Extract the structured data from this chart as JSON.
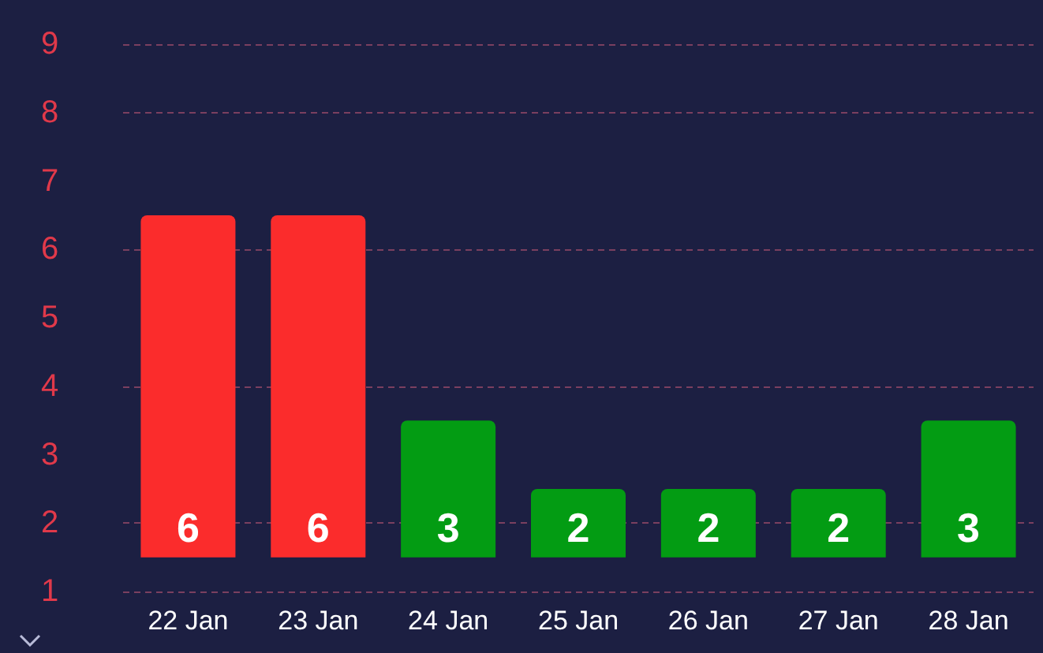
{
  "chart_data": {
    "type": "bar",
    "categories": [
      "22 Jan",
      "23 Jan",
      "24 Jan",
      "25 Jan",
      "26 Jan",
      "27 Jan",
      "28 Jan"
    ],
    "base": [
      1.5,
      1.5,
      1.5,
      1.5,
      1.5,
      1.5,
      1.5
    ],
    "values": [
      5,
      5,
      2,
      1,
      1,
      1,
      2
    ],
    "value_labels": [
      "6",
      "6",
      "3",
      "2",
      "2",
      "2",
      "3"
    ],
    "colors": [
      "#fb2c2c",
      "#fb2c2c",
      "#039c13",
      "#039c13",
      "#039c13",
      "#039c13",
      "#039c13"
    ],
    "ylim": [
      1,
      9
    ],
    "yticks": [
      1,
      2,
      3,
      4,
      5,
      6,
      7,
      8,
      9
    ],
    "grid": "y"
  }
}
